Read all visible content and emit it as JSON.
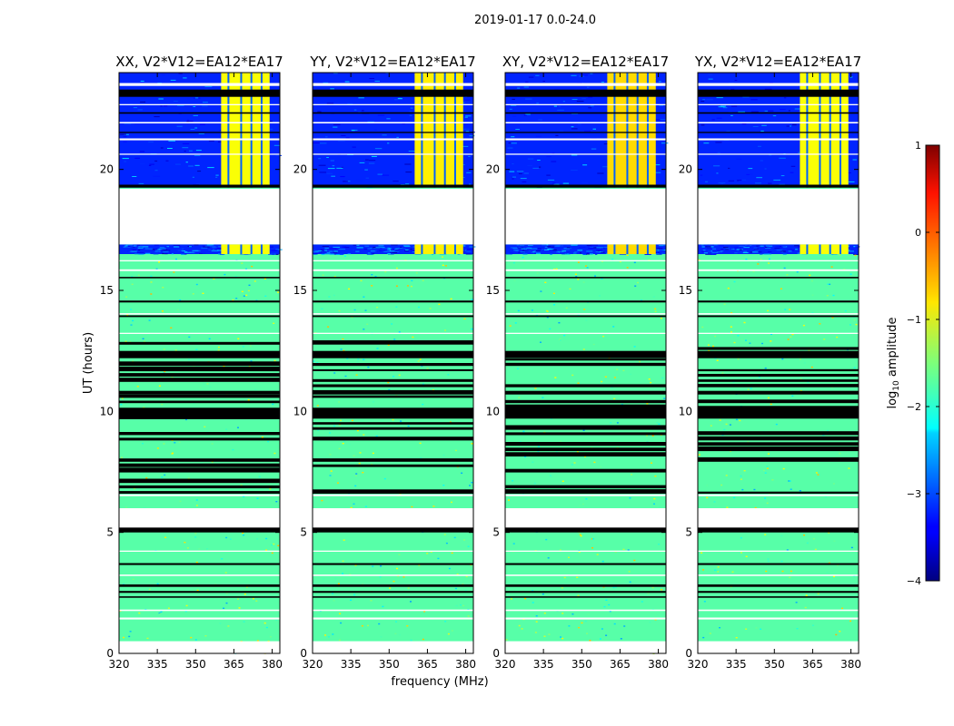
{
  "figure": {
    "suptitle": "2019-01-17 0.0-24.0",
    "ylabel": "UT (hours)",
    "xlabel": "frequency (MHz)"
  },
  "chart_data": [
    {
      "type": "heatmap",
      "title": "XX, V2*V12=EA12*EA17",
      "xlim": [
        320,
        383
      ],
      "ylim": [
        0,
        24
      ],
      "xticks": [
        "320",
        "335",
        "350",
        "365",
        "380"
      ],
      "yticks": [
        "0",
        "5",
        "10",
        "15",
        "20"
      ],
      "rfi_band_mhz": [
        360,
        379
      ],
      "blank_ut_hours": [
        [
          19.2,
          16.9
        ],
        [
          6.0,
          5.2
        ]
      ],
      "quiet_log10_amplitude": -1.7,
      "active_log10_amplitude": -3.2,
      "rfi_log10_amplitude": -0.9
    },
    {
      "type": "heatmap",
      "title": "YY, V2*V12=EA12*EA17",
      "xlim": [
        320,
        383
      ],
      "ylim": [
        0,
        24
      ],
      "xticks": [
        "320",
        "335",
        "350",
        "365",
        "380"
      ],
      "yticks": [
        "0",
        "5",
        "10",
        "15",
        "20"
      ],
      "rfi_band_mhz": [
        360,
        379
      ],
      "blank_ut_hours": [
        [
          19.2,
          16.9
        ],
        [
          6.0,
          5.2
        ]
      ],
      "quiet_log10_amplitude": -1.7,
      "active_log10_amplitude": -3.2,
      "rfi_log10_amplitude": -0.8
    },
    {
      "type": "heatmap",
      "title": "XY, V2*V12=EA12*EA17",
      "xlim": [
        320,
        383
      ],
      "ylim": [
        0,
        24
      ],
      "xticks": [
        "320",
        "335",
        "350",
        "365",
        "380"
      ],
      "yticks": [
        "0",
        "5",
        "10",
        "15",
        "20"
      ],
      "rfi_band_mhz": [
        360,
        379
      ],
      "blank_ut_hours": [
        [
          19.2,
          16.9
        ],
        [
          6.0,
          5.2
        ]
      ],
      "quiet_log10_amplitude": -1.7,
      "active_log10_amplitude": -3.2,
      "rfi_log10_amplitude": -0.7
    },
    {
      "type": "heatmap",
      "title": "YX, V2*V12=EA12*EA17",
      "xlim": [
        320,
        383
      ],
      "ylim": [
        0,
        24
      ],
      "xticks": [
        "320",
        "335",
        "350",
        "365",
        "380"
      ],
      "yticks": [
        "0",
        "5",
        "10",
        "15",
        "20"
      ],
      "rfi_band_mhz": [
        360,
        379
      ],
      "blank_ut_hours": [
        [
          19.2,
          16.9
        ],
        [
          6.0,
          5.2
        ]
      ],
      "quiet_log10_amplitude": -1.7,
      "active_log10_amplitude": -3.2,
      "rfi_log10_amplitude": -0.9
    }
  ],
  "colorbar": {
    "label": "log10 amplitude",
    "label_main": "log",
    "label_sub": "10",
    "label_rest": " amplitude",
    "range": [
      -4,
      1
    ],
    "ticks": [
      "1",
      "0",
      "−1",
      "−2",
      "−3",
      "−4"
    ],
    "colormap": "jet"
  }
}
